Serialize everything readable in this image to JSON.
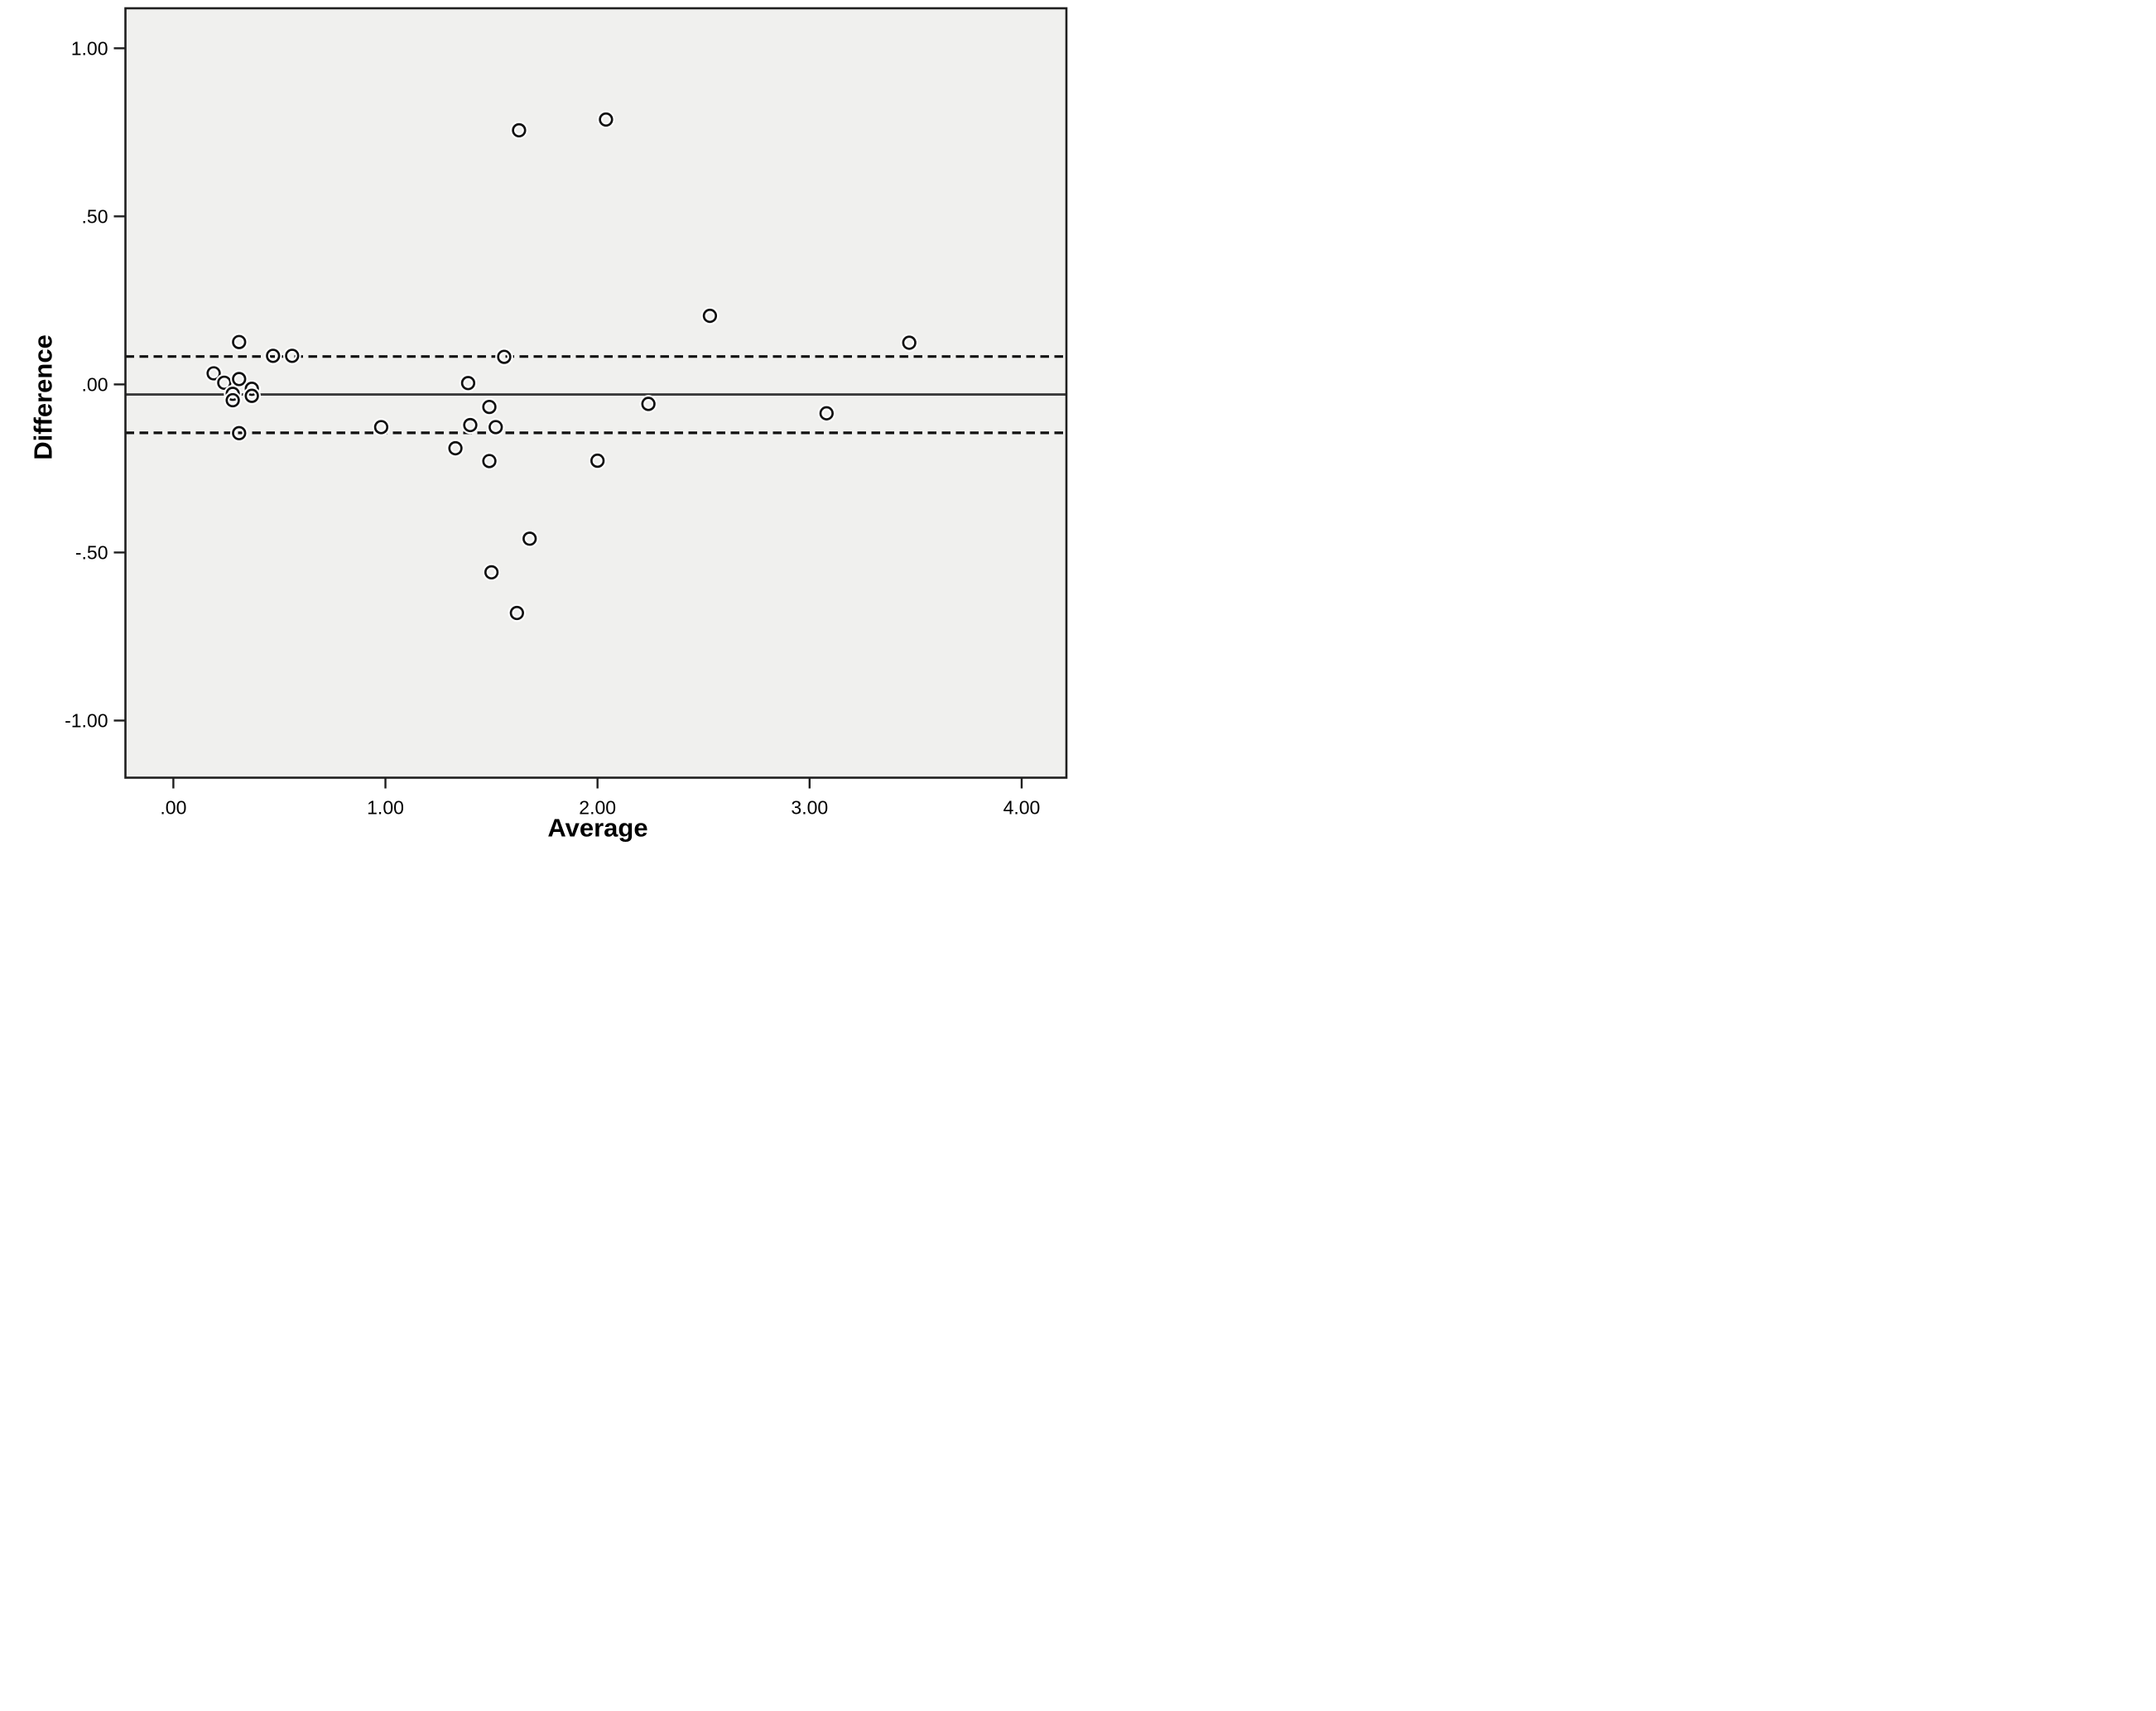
{
  "figure": {
    "kind": "SPSS-style Bland-Altman scatter plot",
    "background": "#ffffff"
  },
  "colors": {
    "plot_background": "#f0f0ee",
    "frame": "#1f1f1f",
    "mean_line": "#3a3a3a",
    "limit_line": "#111111",
    "marker_stroke": "#111111",
    "marker_halo": "#ffffff",
    "text": "#000000"
  },
  "chart_data": {
    "type": "scatter",
    "title": "",
    "xlabel": "Average",
    "ylabel": "Difference",
    "xlim": [
      -0.226,
      4.211
    ],
    "ylim": [
      -1.17,
      1.119
    ],
    "grid": false,
    "legend": false,
    "x_ticks": {
      "values": [
        0,
        1,
        2,
        3,
        4
      ],
      "labels": [
        ".00",
        "1.00",
        "2.00",
        "3.00",
        "4.00"
      ]
    },
    "y_ticks": {
      "values": [
        1.0,
        0.5,
        0.0,
        -0.5,
        -1.0
      ],
      "labels": [
        "1.00",
        ".50",
        ".00",
        "-.50",
        "-1.00"
      ]
    },
    "reference_lines": [
      {
        "name": "mean-difference",
        "value": -0.03,
        "style": "solid"
      },
      {
        "name": "upper-limit-of-agreement",
        "value": 0.083,
        "style": "dashed"
      },
      {
        "name": "lower-limit-of-agreement",
        "value": -0.144,
        "style": "dashed"
      }
    ],
    "points": [
      [
        0.19,
        0.033
      ],
      [
        0.24,
        0.005
      ],
      [
        0.28,
        -0.028
      ],
      [
        0.28,
        -0.047
      ],
      [
        0.31,
        0.126
      ],
      [
        0.31,
        0.016
      ],
      [
        0.31,
        -0.145
      ],
      [
        0.37,
        -0.013
      ],
      [
        0.37,
        -0.034
      ],
      [
        0.47,
        0.085
      ],
      [
        0.56,
        0.085
      ],
      [
        0.98,
        -0.127
      ],
      [
        1.33,
        -0.19
      ],
      [
        1.39,
        0.004
      ],
      [
        1.4,
        -0.121
      ],
      [
        1.49,
        -0.067
      ],
      [
        1.49,
        -0.228
      ],
      [
        1.5,
        -0.559
      ],
      [
        1.52,
        -0.127
      ],
      [
        1.56,
        0.082
      ],
      [
        1.62,
        -0.68
      ],
      [
        1.63,
        0.756
      ],
      [
        1.68,
        -0.459
      ],
      [
        2.0,
        -0.227
      ],
      [
        2.04,
        0.788
      ],
      [
        2.24,
        -0.058
      ],
      [
        2.53,
        0.204
      ],
      [
        3.08,
        -0.086
      ],
      [
        3.47,
        0.124
      ]
    ]
  }
}
